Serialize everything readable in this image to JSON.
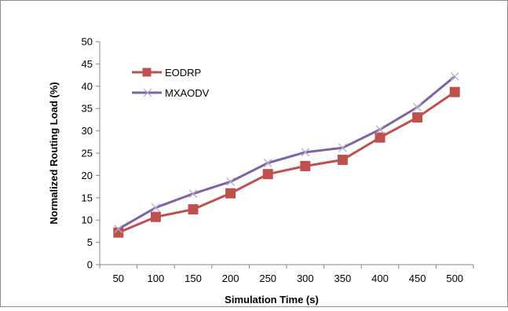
{
  "chart_data": {
    "type": "line",
    "title": "",
    "xlabel": "Simulation Time (s)",
    "ylabel": "Normalized Routing Load (%)",
    "categories": [
      "50",
      "100",
      "150",
      "200",
      "250",
      "300",
      "350",
      "400",
      "450",
      "500"
    ],
    "ylim": [
      0,
      50
    ],
    "yticks": [
      "0",
      "5",
      "10",
      "15",
      "20",
      "25",
      "30",
      "35",
      "40",
      "45",
      "50"
    ],
    "grid": false,
    "legend_position": "top-left",
    "series": [
      {
        "name": "EODRP",
        "color": "#C0504D",
        "marker": "square",
        "values": [
          7.2,
          10.7,
          12.4,
          16.0,
          20.3,
          22.1,
          23.5,
          28.5,
          33.0,
          38.7
        ]
      },
      {
        "name": "MXAODV",
        "color": "#8064A2",
        "marker": "x",
        "values": [
          8.0,
          12.8,
          15.9,
          18.6,
          22.8,
          25.2,
          26.2,
          30.3,
          35.3,
          42.2
        ]
      }
    ]
  }
}
